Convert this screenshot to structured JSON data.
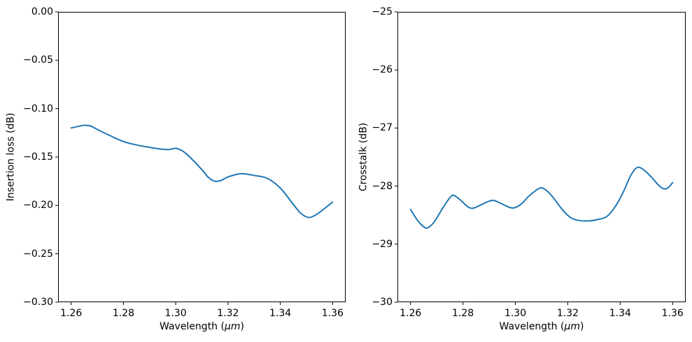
{
  "figure": {
    "background_color": "#ffffff",
    "line_color": "#1f77b4",
    "spine_color": "#000000",
    "text_color": "#000000"
  },
  "chart_data": [
    {
      "type": "line",
      "title": "",
      "xlabel_prefix": "Wavelength (",
      "xlabel_unit": "μm",
      "xlabel_suffix": ")",
      "ylabel": "Insertion loss (dB)",
      "xlim": [
        1.255,
        1.365
      ],
      "ylim": [
        -0.3,
        0.0
      ],
      "grid": false,
      "legend": null,
      "xtick_labels": [
        "1.26",
        "1.28",
        "1.30",
        "1.32",
        "1.34",
        "1.36"
      ],
      "xtick_values": [
        1.26,
        1.28,
        1.3,
        1.32,
        1.34,
        1.36
      ],
      "ytick_labels": [
        "0.00",
        "−0.05",
        "−0.10",
        "−0.15",
        "−0.20",
        "−0.25",
        "−0.30"
      ],
      "ytick_values": [
        0,
        -0.05,
        -0.1,
        -0.15,
        -0.2,
        -0.25,
        -0.3
      ],
      "series": [
        {
          "name": "insertion-loss",
          "color": "#1f77b4",
          "x": [
            1.26,
            1.2625,
            1.265,
            1.2675,
            1.27,
            1.275,
            1.28,
            1.285,
            1.29,
            1.295,
            1.2975,
            1.3,
            1.3025,
            1.305,
            1.31,
            1.3125,
            1.315,
            1.3175,
            1.32,
            1.325,
            1.33,
            1.335,
            1.34,
            1.345,
            1.348,
            1.351,
            1.354,
            1.357,
            1.36
          ],
          "y": [
            -0.12,
            -0.1185,
            -0.1172,
            -0.118,
            -0.1215,
            -0.128,
            -0.134,
            -0.1375,
            -0.14,
            -0.142,
            -0.1422,
            -0.141,
            -0.1435,
            -0.149,
            -0.163,
            -0.171,
            -0.175,
            -0.174,
            -0.1705,
            -0.1672,
            -0.169,
            -0.172,
            -0.182,
            -0.199,
            -0.2085,
            -0.2125,
            -0.209,
            -0.203,
            -0.1965
          ]
        }
      ]
    },
    {
      "type": "line",
      "title": "",
      "xlabel_prefix": "Wavelength (",
      "xlabel_unit": "μm",
      "xlabel_suffix": ")",
      "ylabel": "Crosstalk (dB)",
      "xlim": [
        1.255,
        1.365
      ],
      "ylim": [
        -30,
        -25
      ],
      "grid": false,
      "legend": null,
      "xtick_labels": [
        "1.26",
        "1.28",
        "1.30",
        "1.32",
        "1.34",
        "1.36"
      ],
      "xtick_values": [
        1.26,
        1.28,
        1.3,
        1.32,
        1.34,
        1.36
      ],
      "ytick_labels": [
        "−25",
        "−26",
        "−27",
        "−28",
        "−29",
        "−30"
      ],
      "ytick_values": [
        -25,
        -26,
        -27,
        -28,
        -29,
        -30
      ],
      "series": [
        {
          "name": "crosstalk",
          "color": "#1f77b4",
          "x": [
            1.26,
            1.2625,
            1.265,
            1.2665,
            1.269,
            1.272,
            1.275,
            1.2765,
            1.279,
            1.282,
            1.284,
            1.287,
            1.29,
            1.292,
            1.295,
            1.298,
            1.3,
            1.3025,
            1.305,
            1.308,
            1.31,
            1.3125,
            1.315,
            1.318,
            1.321,
            1.324,
            1.328,
            1.332,
            1.335,
            1.338,
            1.341,
            1.344,
            1.3465,
            1.349,
            1.352,
            1.355,
            1.357,
            1.3585,
            1.36
          ],
          "y": [
            -28.4,
            -28.58,
            -28.7,
            -28.72,
            -28.62,
            -28.4,
            -28.2,
            -28.16,
            -28.24,
            -28.36,
            -28.38,
            -28.32,
            -28.26,
            -28.25,
            -28.31,
            -28.37,
            -28.37,
            -28.3,
            -28.18,
            -28.07,
            -28.03,
            -28.1,
            -28.23,
            -28.41,
            -28.54,
            -28.59,
            -28.6,
            -28.57,
            -28.52,
            -28.36,
            -28.12,
            -27.82,
            -27.68,
            -27.72,
            -27.85,
            -28.0,
            -28.05,
            -28.02,
            -27.94
          ]
        }
      ]
    }
  ]
}
